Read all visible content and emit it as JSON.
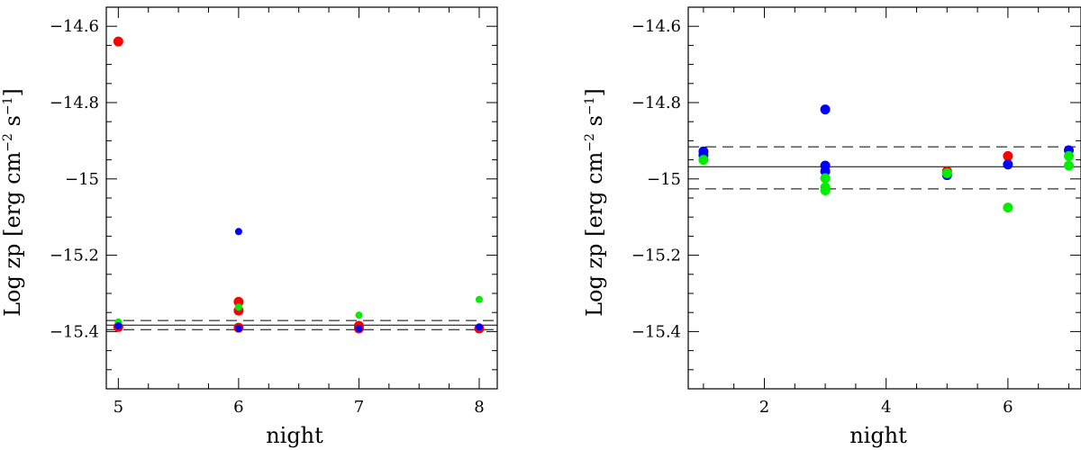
{
  "chart_data": [
    {
      "type": "scatter",
      "xlabel": "night",
      "ylabel": {
        "main": "Log zp [erg cm",
        "exp1": "−2",
        "mid": " s",
        "exp2": "−1",
        "end": "]"
      },
      "xlim": [
        4.9,
        8.15
      ],
      "ylim": [
        -15.55,
        -14.55
      ],
      "xticks": [
        5,
        6,
        7,
        8
      ],
      "xtick_labels": [
        "5",
        "6",
        "7",
        "8"
      ],
      "yticks": [
        -14.6,
        -14.8,
        -15.0,
        -15.2,
        -15.4
      ],
      "ytick_labels": [
        "−14.6",
        "−14.8",
        "−15",
        "−15.2",
        "−15.4"
      ],
      "reference_lines": {
        "mean": -15.383,
        "upper": -15.371,
        "lower": -15.395
      },
      "series": [
        {
          "color": "#ff0000",
          "points": [
            [
              5,
              -14.64,
              "l"
            ],
            [
              5,
              -15.388,
              "l"
            ],
            [
              6,
              -15.322,
              "l"
            ],
            [
              6,
              -15.345,
              "l"
            ],
            [
              6,
              -15.39,
              "l"
            ],
            [
              7,
              -15.385,
              "l"
            ],
            [
              7,
              -15.392,
              "l"
            ],
            [
              8,
              -15.392,
              "l"
            ]
          ]
        },
        {
          "color": "#00ee00",
          "points": [
            [
              5,
              -15.375,
              "s"
            ],
            [
              6,
              -15.336,
              "s"
            ],
            [
              7,
              -15.357,
              "s"
            ],
            [
              8,
              -15.316,
              "s"
            ]
          ]
        },
        {
          "color": "#0000ff",
          "points": [
            [
              5,
              -15.385,
              "s"
            ],
            [
              6,
              -15.138,
              "s"
            ],
            [
              6,
              -15.392,
              "s"
            ],
            [
              7,
              -15.392,
              "s"
            ],
            [
              8,
              -15.388,
              "s"
            ]
          ]
        }
      ]
    },
    {
      "type": "scatter",
      "xlabel": "night",
      "ylabel": {
        "main": "Log zp [erg cm",
        "exp1": "−2",
        "mid": " s",
        "exp2": "−1",
        "end": "]"
      },
      "xlim": [
        0.75,
        7.2
      ],
      "ylim": [
        -15.55,
        -14.55
      ],
      "xticks": [
        2,
        4,
        6
      ],
      "xtick_labels": [
        "2",
        "4",
        "6"
      ],
      "yticks": [
        -14.6,
        -14.8,
        -15.0,
        -15.2,
        -15.4
      ],
      "ytick_labels": [
        "−14.6",
        "−14.8",
        "−15",
        "−15.2",
        "−15.4"
      ],
      "reference_lines": {
        "mean": -14.968,
        "upper": -14.916,
        "lower": -15.026
      },
      "series": [
        {
          "color": "#ff0000",
          "points": [
            [
              5,
              -14.98
            ],
            [
              6,
              -14.94
            ]
          ]
        },
        {
          "color": "#0000ff",
          "points": [
            [
              1,
              -14.928
            ],
            [
              1,
              -14.938
            ],
            [
              3,
              -14.818
            ],
            [
              3,
              -14.965
            ],
            [
              3,
              -14.98
            ],
            [
              5,
              -14.99
            ],
            [
              6,
              -14.962
            ],
            [
              7,
              -14.925
            ]
          ]
        },
        {
          "color": "#00ee00",
          "points": [
            [
              1,
              -14.95
            ],
            [
              3,
              -14.998
            ],
            [
              3,
              -15.022
            ],
            [
              3,
              -15.03
            ],
            [
              5,
              -14.985
            ],
            [
              6,
              -15.075
            ],
            [
              7,
              -14.94
            ],
            [
              7,
              -14.965
            ]
          ]
        }
      ]
    }
  ]
}
